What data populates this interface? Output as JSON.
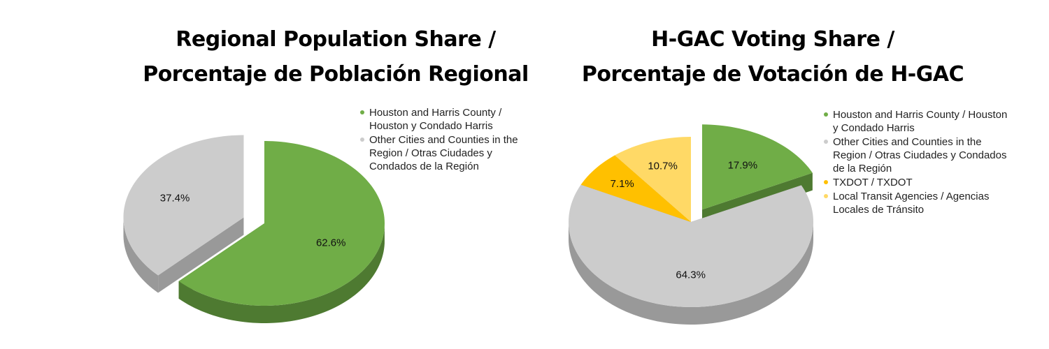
{
  "chart_data": [
    {
      "type": "pie",
      "title_lines": [
        "Regional Population Share /",
        "Porcentaje de Población Regional"
      ],
      "slices": [
        {
          "label": "Houston and Harris County / Houston y Condado Harris",
          "legend_lines": [
            "Houston and Harris County /",
            "Houston y Condado Harris"
          ],
          "value": 62.6,
          "value_label": "62.6%",
          "color": "#70ad47",
          "side_color": "#4e7a31",
          "exploded": false
        },
        {
          "label": "Other Cities and Counties in the Region / Otras Ciudades y Condados de la Región",
          "legend_lines": [
            "Other Cities and Counties in the",
            "Region / Otras Ciudades y",
            "Condados de la Región"
          ],
          "value": 37.4,
          "value_label": "37.4%",
          "color": "#cccccc",
          "side_color": "#999999",
          "exploded": true
        }
      ],
      "legend_position": "right",
      "style": "3d-exploded"
    },
    {
      "type": "pie",
      "title_lines": [
        "H-GAC Voting Share /",
        "Porcentaje de Votación de H-GAC"
      ],
      "slices": [
        {
          "label": "Houston and Harris County / Houston y Condado Harris",
          "legend_lines": [
            "Houston and Harris County / Houston",
            "y Condado Harris"
          ],
          "value": 17.9,
          "value_label": "17.9%",
          "color": "#70ad47",
          "side_color": "#4e7a31",
          "exploded": true
        },
        {
          "label": "Other Cities and Counties in the Region / Otras Ciudades y Condados de la Región",
          "legend_lines": [
            "Other Cities and Counties in the",
            "Region / Otras Ciudades y Condados",
            "de la Región"
          ],
          "value": 64.3,
          "value_label": "64.3%",
          "color": "#cccccc",
          "side_color": "#999999",
          "exploded": false
        },
        {
          "label": "TXDOT / TXDOT",
          "legend_lines": [
            "TXDOT / TXDOT"
          ],
          "value": 7.1,
          "value_label": "7.1%",
          "color": "#ffc000",
          "side_color": "#c99700",
          "exploded": false
        },
        {
          "label": "Local Transit Agencies / Agencias Locales de Tránsito",
          "legend_lines": [
            "Local Transit Agencies / Agencias",
            "Locales de Tránsito"
          ],
          "value": 10.7,
          "value_label": "10.7%",
          "color": "#ffd966",
          "side_color": "#c9a83d",
          "exploded": false
        }
      ],
      "legend_position": "right",
      "style": "3d-exploded"
    }
  ]
}
